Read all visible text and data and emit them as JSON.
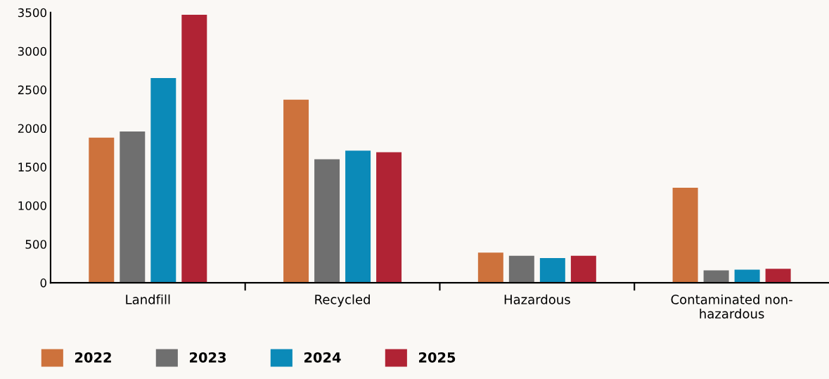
{
  "chart_data": {
    "type": "bar",
    "categories": [
      "Landfill",
      "Recycled",
      "Hazardous",
      "Contaminated non-\nhazardous"
    ],
    "series": [
      {
        "name": "2022",
        "color": "#cd723c",
        "values": [
          1880,
          2370,
          390,
          1230
        ]
      },
      {
        "name": "2023",
        "color": "#6f6f6f",
        "values": [
          1960,
          1600,
          350,
          160
        ]
      },
      {
        "name": "2024",
        "color": "#0b8ab8",
        "values": [
          2650,
          1710,
          320,
          170
        ]
      },
      {
        "name": "2025",
        "color": "#b02334",
        "values": [
          3470,
          1690,
          350,
          180
        ]
      }
    ],
    "ylim": [
      0,
      3500
    ],
    "yticks": [
      0,
      500,
      1000,
      1500,
      2000,
      2500,
      3000,
      3500
    ],
    "grid": false,
    "legend": "bottom left"
  }
}
